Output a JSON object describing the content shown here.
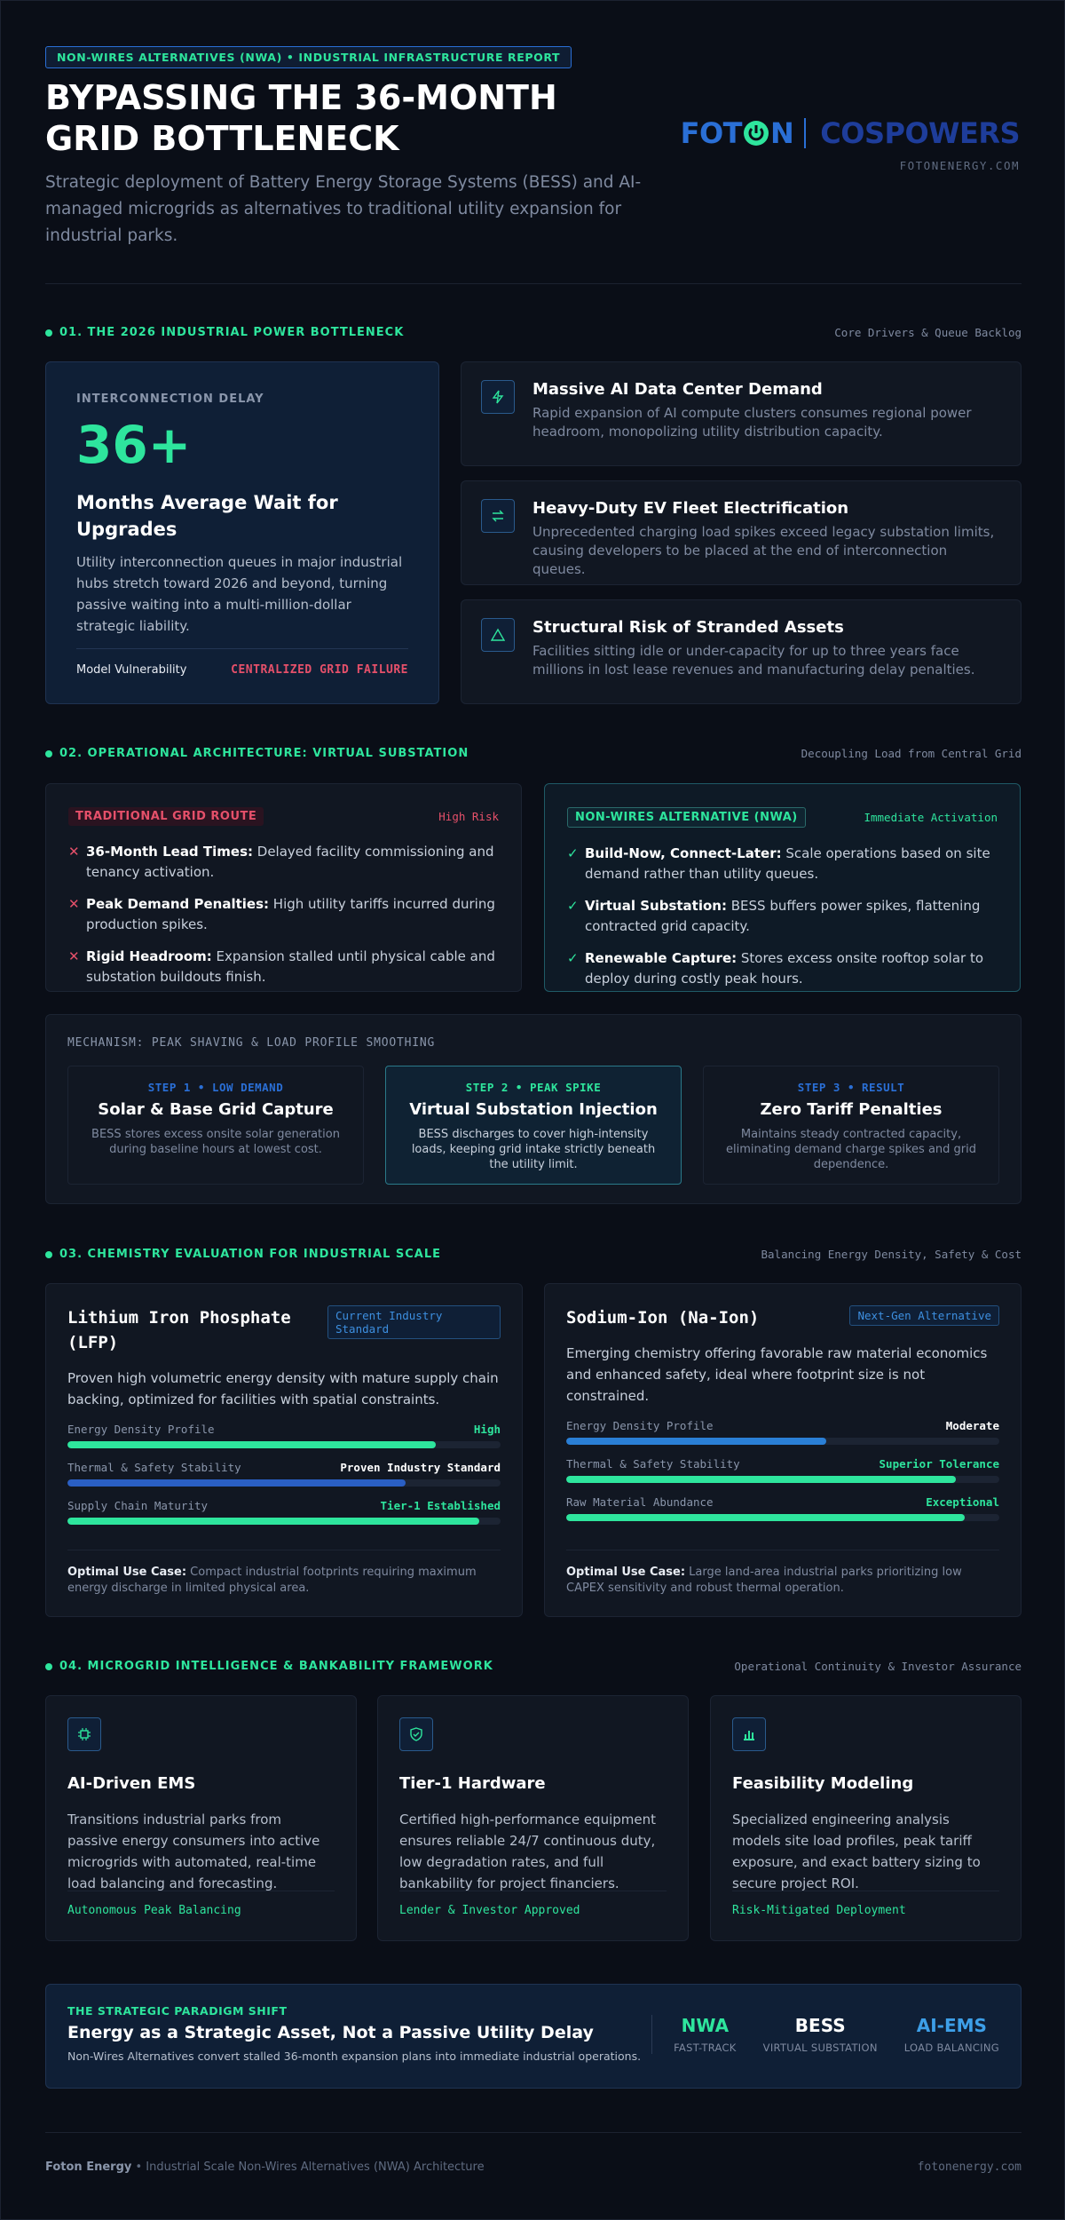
{
  "header": {
    "tag": "NON-WIRES ALTERNATIVES (NWA) • INDUSTRIAL INFRASTRUCTURE REPORT",
    "title": "BYPASSING THE 36-MONTH GRID BOTTLENECK",
    "subtitle": "Strategic deployment of Battery Energy Storage Systems (BESS) and AI-managed microgrids as alternatives to traditional utility expansion for industrial parks.",
    "logo": {
      "left": "FOT",
      "right": "N",
      "brand": "COSPOWERS"
    },
    "domain": "FOTONENERGY.COM"
  },
  "section1": {
    "heading": "01. THE 2026 INDUSTRIAL POWER BOTTLENECK",
    "meta": "Core Drivers & Queue Backlog",
    "hero": {
      "label": "INTERCONNECTION DELAY",
      "stat": "36+",
      "heading": "Months Average Wait for Upgrades",
      "text": "Utility interconnection queues in major industrial hubs stretch toward 2026 and beyond, turning passive waiting into a multi-million-dollar strategic liability.",
      "footer_label": "Model Vulnerability",
      "footer_value": "CENTRALIZED GRID FAILURE"
    },
    "drivers": [
      {
        "title": "Massive AI Data Center Demand",
        "text": "Rapid expansion of AI compute clusters consumes regional power headroom, monopolizing utility distribution capacity."
      },
      {
        "title": "Heavy-Duty EV Fleet Electrification",
        "text": "Unprecedented charging load spikes exceed legacy substation limits, causing developers to be placed at the end of interconnection queues."
      },
      {
        "title": "Structural Risk of Stranded Assets",
        "text": "Facilities sitting idle or under-capacity for up to three years face millions in lost lease revenues and manufacturing delay penalties."
      }
    ]
  },
  "section2": {
    "heading": "02. OPERATIONAL ARCHITECTURE: VIRTUAL SUBSTATION",
    "meta": "Decoupling Load from Central Grid",
    "traditional": {
      "badge": "TRADITIONAL GRID ROUTE",
      "status": "High Risk",
      "items": [
        {
          "label": "36-Month Lead Times:",
          "text": " Delayed facility commissioning and tenancy activation."
        },
        {
          "label": "Peak Demand Penalties:",
          "text": " High utility tariffs incurred during production spikes."
        },
        {
          "label": "Rigid Headroom:",
          "text": " Expansion stalled until physical cable and substation buildouts finish."
        }
      ]
    },
    "nwa": {
      "badge": "NON-WIRES ALTERNATIVE (NWA)",
      "status": "Immediate Activation",
      "items": [
        {
          "label": "Build-Now, Connect-Later:",
          "text": " Scale operations based on site demand rather than utility queues."
        },
        {
          "label": "Virtual Substation:",
          "text": " BESS buffers power spikes, flattening contracted grid capacity."
        },
        {
          "label": "Renewable Capture:",
          "text": " Stores excess onsite rooftop solar to deploy during costly peak hours."
        }
      ]
    },
    "mechanism": {
      "title": "MECHANISM: PEAK SHAVING & LOAD PROFILE SMOOTHING",
      "steps": [
        {
          "step": "STEP 1 • LOW DEMAND",
          "title": "Solar & Base Grid Capture",
          "text": "BESS stores excess onsite solar generation during baseline hours at lowest cost."
        },
        {
          "step": "STEP 2 • PEAK SPIKE",
          "title": "Virtual Substation Injection",
          "text": "BESS discharges to cover high-intensity loads, keeping grid intake strictly beneath the utility limit."
        },
        {
          "step": "STEP 3 • RESULT",
          "title": "Zero Tariff Penalties",
          "text": "Maintains steady contracted capacity, eliminating demand charge spikes and grid dependence."
        }
      ]
    }
  },
  "section3": {
    "heading": "03. CHEMISTRY EVALUATION FOR INDUSTRIAL SCALE",
    "meta": "Balancing Energy Density, Safety & Cost",
    "chemistries": [
      {
        "name": "Lithium Iron Phosphate (LFP)",
        "badge": "Current Industry Standard",
        "description": "Proven high volumetric energy density with mature supply chain backing, optimized for facilities with spatial constraints.",
        "metrics": [
          {
            "label": "Energy Density Profile",
            "value_label": "High",
            "value": 85,
            "color": "#2ee59d"
          },
          {
            "label": "Thermal & Safety Stability",
            "value_label": "Proven Industry Standard",
            "value": 78,
            "color": "#2a5fc4"
          },
          {
            "label": "Supply Chain Maturity",
            "value_label": "Tier-1 Established",
            "value": 95,
            "color": "#2ee59d"
          }
        ],
        "use_case_label": "Optimal Use Case:",
        "use_case": " Compact industrial footprints requiring maximum energy discharge in limited physical area."
      },
      {
        "name": "Sodium-Ion (Na-Ion)",
        "badge": "Next-Gen Alternative",
        "description": "Emerging chemistry offering favorable raw material economics and enhanced safety, ideal where footprint size is not constrained.",
        "metrics": [
          {
            "label": "Energy Density Profile",
            "value_label": "Moderate",
            "value": 60,
            "color": "#2a7fd6"
          },
          {
            "label": "Thermal & Safety Stability",
            "value_label": "Superior Tolerance",
            "value": 90,
            "color": "#2ee59d"
          },
          {
            "label": "Raw Material Abundance",
            "value_label": "Exceptional",
            "value": 92,
            "color": "#2ee59d"
          }
        ],
        "use_case_label": "Optimal Use Case:",
        "use_case": " Large land-area industrial parks prioritizing low CAPEX sensitivity and robust thermal operation."
      }
    ]
  },
  "section4": {
    "heading": "04. MICROGRID INTELLIGENCE & BANKABILITY FRAMEWORK",
    "meta": "Operational Continuity & Investor Assurance",
    "cards": [
      {
        "title": "AI-Driven EMS",
        "text": "Transitions industrial parks from passive energy consumers into active microgrids with automated, real-time load balancing and forecasting.",
        "tag": "Autonomous Peak Balancing"
      },
      {
        "title": "Tier-1 Hardware",
        "text": "Certified high-performance equipment ensures reliable 24/7 continuous duty, low degradation rates, and full bankability for project financiers.",
        "tag": "Lender & Investor Approved"
      },
      {
        "title": "Feasibility Modeling",
        "text": "Specialized engineering analysis models site load profiles, peak tariff exposure, and exact battery sizing to secure project ROI.",
        "tag": "Risk-Mitigated Deployment"
      }
    ]
  },
  "banner": {
    "kicker": "THE STRATEGIC PARADIGM SHIFT",
    "title": "Energy as a Strategic Asset, Not a Passive Utility Delay",
    "text": "Non-Wires Alternatives convert stalled 36-month expansion plans into immediate industrial operations.",
    "stats": [
      {
        "value": "NWA",
        "label": "FAST-TRACK",
        "color": "#2ee59d"
      },
      {
        "value": "BESS",
        "label": "VIRTUAL SUBSTATION",
        "color": "#ffffff"
      },
      {
        "value": "AI-EMS",
        "label": "LOAD BALANCING",
        "color": "#3d9fe8"
      }
    ]
  },
  "footer": {
    "brand": "Foton Energy",
    "text": " • Industrial Scale Non-Wires Alternatives (NWA) Architecture",
    "domain": "fotonenergy.com"
  }
}
